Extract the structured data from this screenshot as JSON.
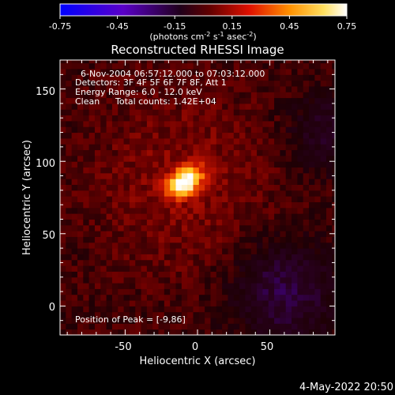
{
  "colorbar": {
    "tick_labels": [
      "-0.75",
      "-0.45",
      "-0.15",
      "0.15",
      "0.45",
      "0.75"
    ],
    "units_label": "(photons cm",
    "units_sup1": "-2",
    "units_mid1": " s",
    "units_sup2": "-1",
    "units_mid2": " asec",
    "units_sup3": "-2",
    "units_end": ")",
    "colors": [
      "#0000ff",
      "#4b0082",
      "#000000",
      "#ff0000",
      "#ffa500",
      "#ffffff"
    ]
  },
  "plot": {
    "title": "Reconstructed RHESSI Image",
    "xlabel": "Heliocentric X (arcsec)",
    "ylabel": "Heliocentric Y (arcsec)",
    "x_ticks": [
      "-50",
      "0",
      "50"
    ],
    "y_ticks": [
      "0",
      "50",
      "100",
      "150"
    ],
    "info": {
      "time_range": "6-Nov-2004 06:57:12.000 to 07:03:12.000",
      "detectors": "Detectors: 3F 4F 5F 6F 7F 8F, Att 1",
      "energy": "Energy Range: 6.0 - 12.0 keV",
      "clean": "Clean",
      "counts": "Total counts: 1.42E+04"
    },
    "peak": "Position of Peak = [-9,86]"
  },
  "footer": {
    "date": "4-May-2022 20:50"
  },
  "chart_data": {
    "type": "heatmap",
    "title": "Reconstructed RHESSI Image",
    "xlabel": "Heliocentric X (arcsec)",
    "ylabel": "Heliocentric Y (arcsec)",
    "xlim": [
      -95,
      95
    ],
    "ylim": [
      -20,
      170
    ],
    "x_ticks": [
      -50,
      0,
      50
    ],
    "y_ticks": [
      0,
      50,
      100,
      150
    ],
    "colorbar_range": [
      -0.75,
      0.75
    ],
    "colorbar_ticks": [
      -0.75,
      -0.45,
      -0.15,
      0.15,
      0.45,
      0.75
    ],
    "peak_position": [
      -9,
      86
    ],
    "peak_value": 0.75
  }
}
